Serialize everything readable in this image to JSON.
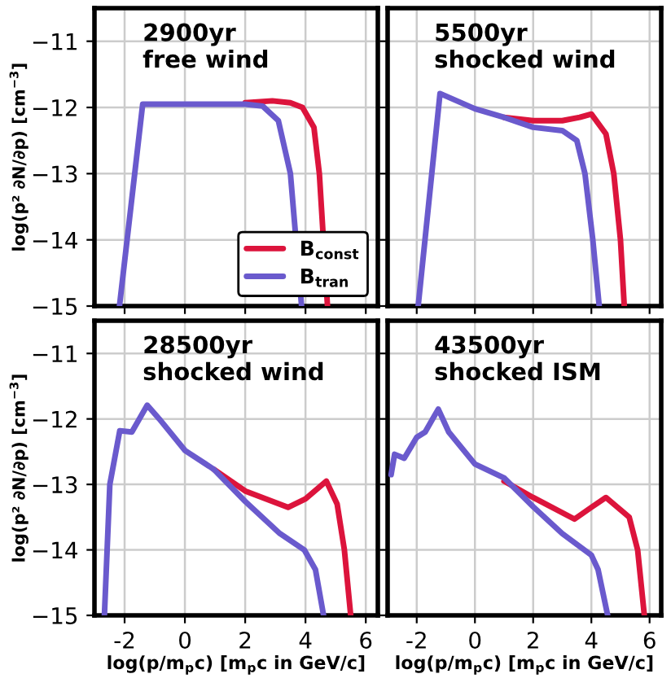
{
  "chart_data": [
    {
      "type": "line",
      "annotations": [
        "2900yr\nfree wind"
      ],
      "ylabel": "log(p² ∂N/∂p) [cm$^{−3}$]",
      "xlim": [
        -3,
        6.4
      ],
      "ylim": [
        -15,
        -10.5
      ],
      "xticks": [
        -2,
        0,
        2,
        4,
        6
      ],
      "yticks": [
        -15,
        -14,
        -13,
        -12,
        -11
      ],
      "grid": true,
      "tick_labels": "y",
      "legend": "bottom right",
      "series": [
        {
          "name": "B$_{const}$",
          "color": "#dc143c",
          "x": [
            2,
            2.9,
            3.5,
            3.9,
            4.28,
            4.46,
            4.73
          ],
          "values": [
            -11.93,
            -11.9,
            -11.93,
            -12,
            -12.3,
            -13,
            -15
          ]
        },
        {
          "name": "B$_{tran}$",
          "color": "#6a5acd",
          "x": [
            -2.17,
            -1.4,
            0,
            1,
            2,
            2.58,
            3.1,
            3.5,
            3.87
          ],
          "values": [
            -15,
            -11.95,
            -11.95,
            -11.95,
            -11.95,
            -11.98,
            -12.2,
            -13,
            -15
          ]
        }
      ]
    },
    {
      "type": "line",
      "annotations": [
        "5500yr\nshocked wind"
      ],
      "xlim": [
        -3,
        6.4
      ],
      "ylim": [
        -15,
        -10.5
      ],
      "xticks": [
        -2,
        0,
        2,
        4,
        6
      ],
      "yticks": [
        -15,
        -14,
        -13,
        -12,
        -11
      ],
      "grid": true,
      "tick_labels": false,
      "series": [
        {
          "color": "#dc143c",
          "x": [
            1,
            2,
            3,
            3.6,
            4,
            4.5,
            4.77,
            5.0,
            5.13
          ],
          "values": [
            -12.15,
            -12.2,
            -12.2,
            -12.15,
            -12.1,
            -12.4,
            -13,
            -14,
            -15
          ]
        },
        {
          "color": "#6a5acd",
          "x": [
            -1.95,
            -1.2,
            0,
            1,
            2,
            3,
            3.5,
            3.78,
            4.05,
            4.27
          ],
          "values": [
            -15,
            -11.79,
            -12.02,
            -12.15,
            -12.3,
            -12.35,
            -12.5,
            -13,
            -14,
            -15
          ]
        }
      ]
    },
    {
      "type": "line",
      "annotations": [
        "28500yr\nshocked wind"
      ],
      "xlabel": "log(p/m$_{p}$c) [m$_{p}$c in GeV/c]",
      "ylabel": "log(p² ∂N/∂p) [cm$^{−3}$]",
      "xlim": [
        -3,
        6.4
      ],
      "ylim": [
        -15,
        -10.5
      ],
      "xticks": [
        -2,
        0,
        2,
        4,
        6
      ],
      "yticks": [
        -15,
        -14,
        -13,
        -12,
        -11
      ],
      "grid": true,
      "series": [
        {
          "color": "#dc143c",
          "x": [
            0.96,
            2,
            3.42,
            4,
            4.69,
            5.05,
            5.29,
            5.5
          ],
          "values": [
            -12.77,
            -13.1,
            -13.35,
            -13.22,
            -12.95,
            -13.3,
            -14,
            -15
          ]
        },
        {
          "color": "#6a5acd",
          "x": [
            -2.67,
            -2.49,
            -2.16,
            -1.76,
            -1.25,
            -0.85,
            0,
            0.96,
            2,
            3.15,
            3.96,
            4.33,
            4.6
          ],
          "values": [
            -15,
            -13,
            -12.18,
            -12.2,
            -11.79,
            -12.0,
            -12.48,
            -12.77,
            -13.26,
            -13.75,
            -14.0,
            -14.3,
            -15
          ]
        }
      ]
    },
    {
      "type": "line",
      "annotations": [
        "43500yr\nshocked ISM"
      ],
      "xlabel": "log(p/m$_{p}$c) [m$_{p}$c in GeV/c]",
      "xlim": [
        -3,
        6.4
      ],
      "ylim": [
        -15,
        -10.5
      ],
      "xticks": [
        -2,
        0,
        2,
        4,
        6
      ],
      "yticks": [
        -15,
        -14,
        -13,
        -12,
        -11
      ],
      "grid": true,
      "tick_labels": "x",
      "series": [
        {
          "color": "#dc143c",
          "x": [
            1,
            2,
            3.42,
            4,
            4.5,
            5.3,
            5.59,
            5.82
          ],
          "values": [
            -12.95,
            -13.2,
            -13.53,
            -13.35,
            -13.2,
            -13.5,
            -14,
            -15
          ]
        },
        {
          "color": "#6a5acd",
          "x": [
            -2.88,
            -2.76,
            -2.43,
            -2,
            -1.71,
            -1.26,
            -0.9,
            0,
            1,
            2,
            3,
            4,
            4.23,
            4.56
          ],
          "values": [
            -12.85,
            -12.54,
            -12.6,
            -12.28,
            -12.2,
            -11.85,
            -12.2,
            -12.69,
            -12.9,
            -13.34,
            -13.75,
            -14.08,
            -14.3,
            -15
          ]
        }
      ]
    }
  ]
}
